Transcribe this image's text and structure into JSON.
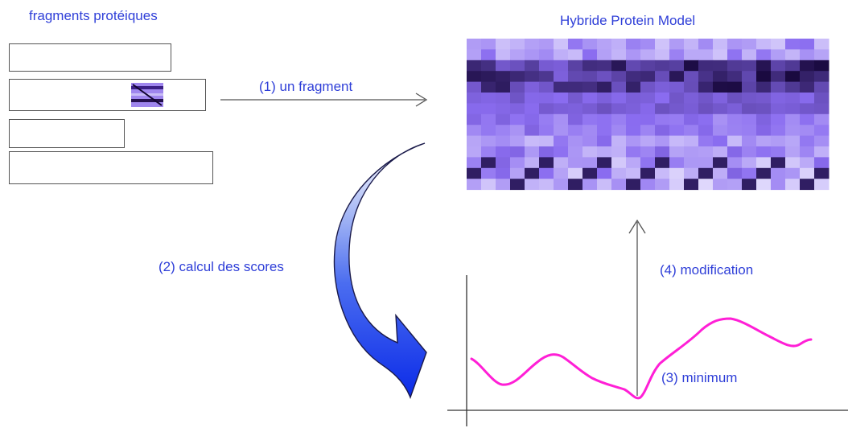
{
  "labels": {
    "fragments_title": "fragments protéiques",
    "model_title": "Hybride Protein Model",
    "step1": "(1) un fragment",
    "step2": "(2) calcul des scores",
    "step3": "(3) minimum",
    "step4": "(4) modification"
  },
  "colors": {
    "label_text": "#2f3fd8",
    "score_curve": "#ff1fd6",
    "arrow_light": "#8fa6f2",
    "arrow_dark": "#1f3fe6",
    "matrix_light": "#f2f0ff",
    "matrix_dark": "#1a0a40",
    "matrix_base": "#8a6cf0"
  },
  "icons": {
    "arrow_step1": "right-arrow-icon",
    "arrow_step2": "curved-arrow-icon",
    "arrow_step4": "up-arrow-icon"
  }
}
